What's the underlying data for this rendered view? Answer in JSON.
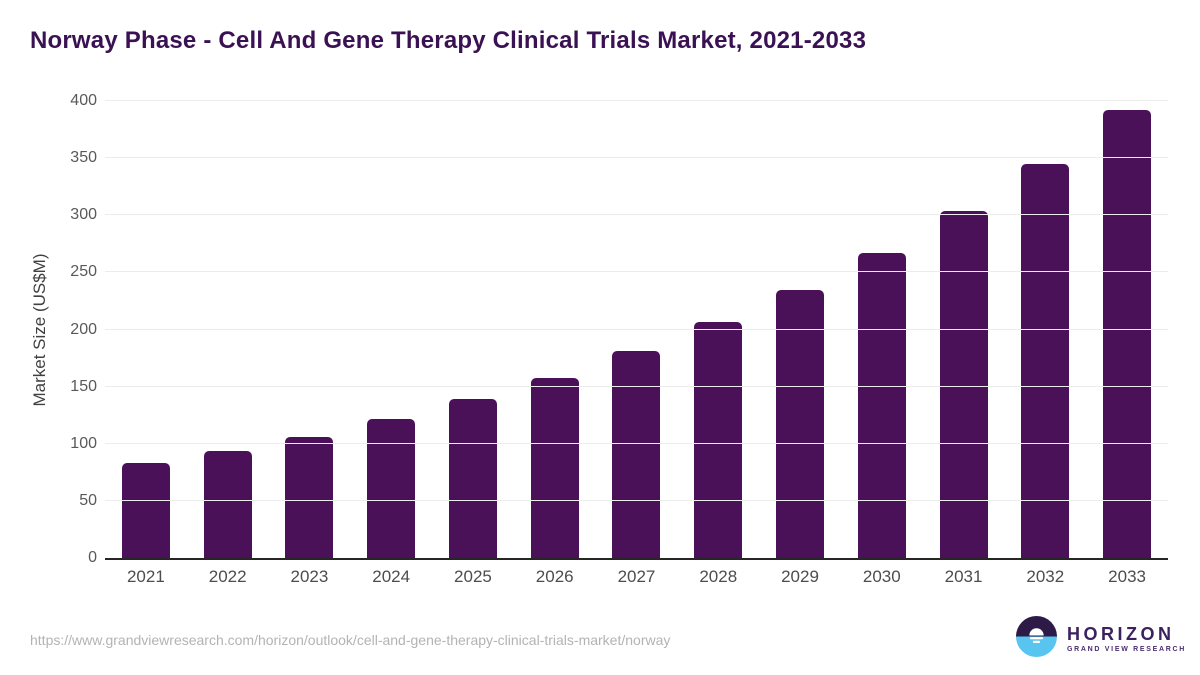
{
  "title": "Norway Phase - Cell And Gene Therapy Clinical Trials Market, 2021-2033",
  "chart_data": {
    "type": "bar",
    "title": "Norway Phase - Cell And Gene Therapy Clinical Trials Market, 2021-2033",
    "categories": [
      "2021",
      "2022",
      "2023",
      "2024",
      "2025",
      "2026",
      "2027",
      "2028",
      "2029",
      "2030",
      "2031",
      "2032",
      "2033"
    ],
    "values": [
      83,
      94,
      106,
      122,
      139,
      158,
      181,
      207,
      235,
      267,
      304,
      345,
      392
    ],
    "xlabel": "",
    "ylabel": "Market Size (US$M)",
    "ylim": [
      0,
      400
    ],
    "yticks": [
      0,
      50,
      100,
      150,
      200,
      250,
      300,
      350,
      400
    ],
    "grid": true,
    "legend": false,
    "bar_color": "#4a1158",
    "gridline_color": "#ececec",
    "axis_line_color": "#262626"
  },
  "footer": {
    "source_url": "https://www.grandviewresearch.com/horizon/outlook/cell-and-gene-therapy-clinical-trials-market/norway",
    "logo": {
      "name": "HORIZON",
      "subtitle": "GRAND VIEW RESEARCH",
      "mark_top_color": "#2e1a47",
      "mark_bottom_color": "#58c4f0",
      "text_color": "#3b2160"
    }
  },
  "colors": {
    "title": "#3a1253",
    "tick_label": "#595959",
    "axis_title": "#404040",
    "source_url": "#b3b3b3"
  }
}
